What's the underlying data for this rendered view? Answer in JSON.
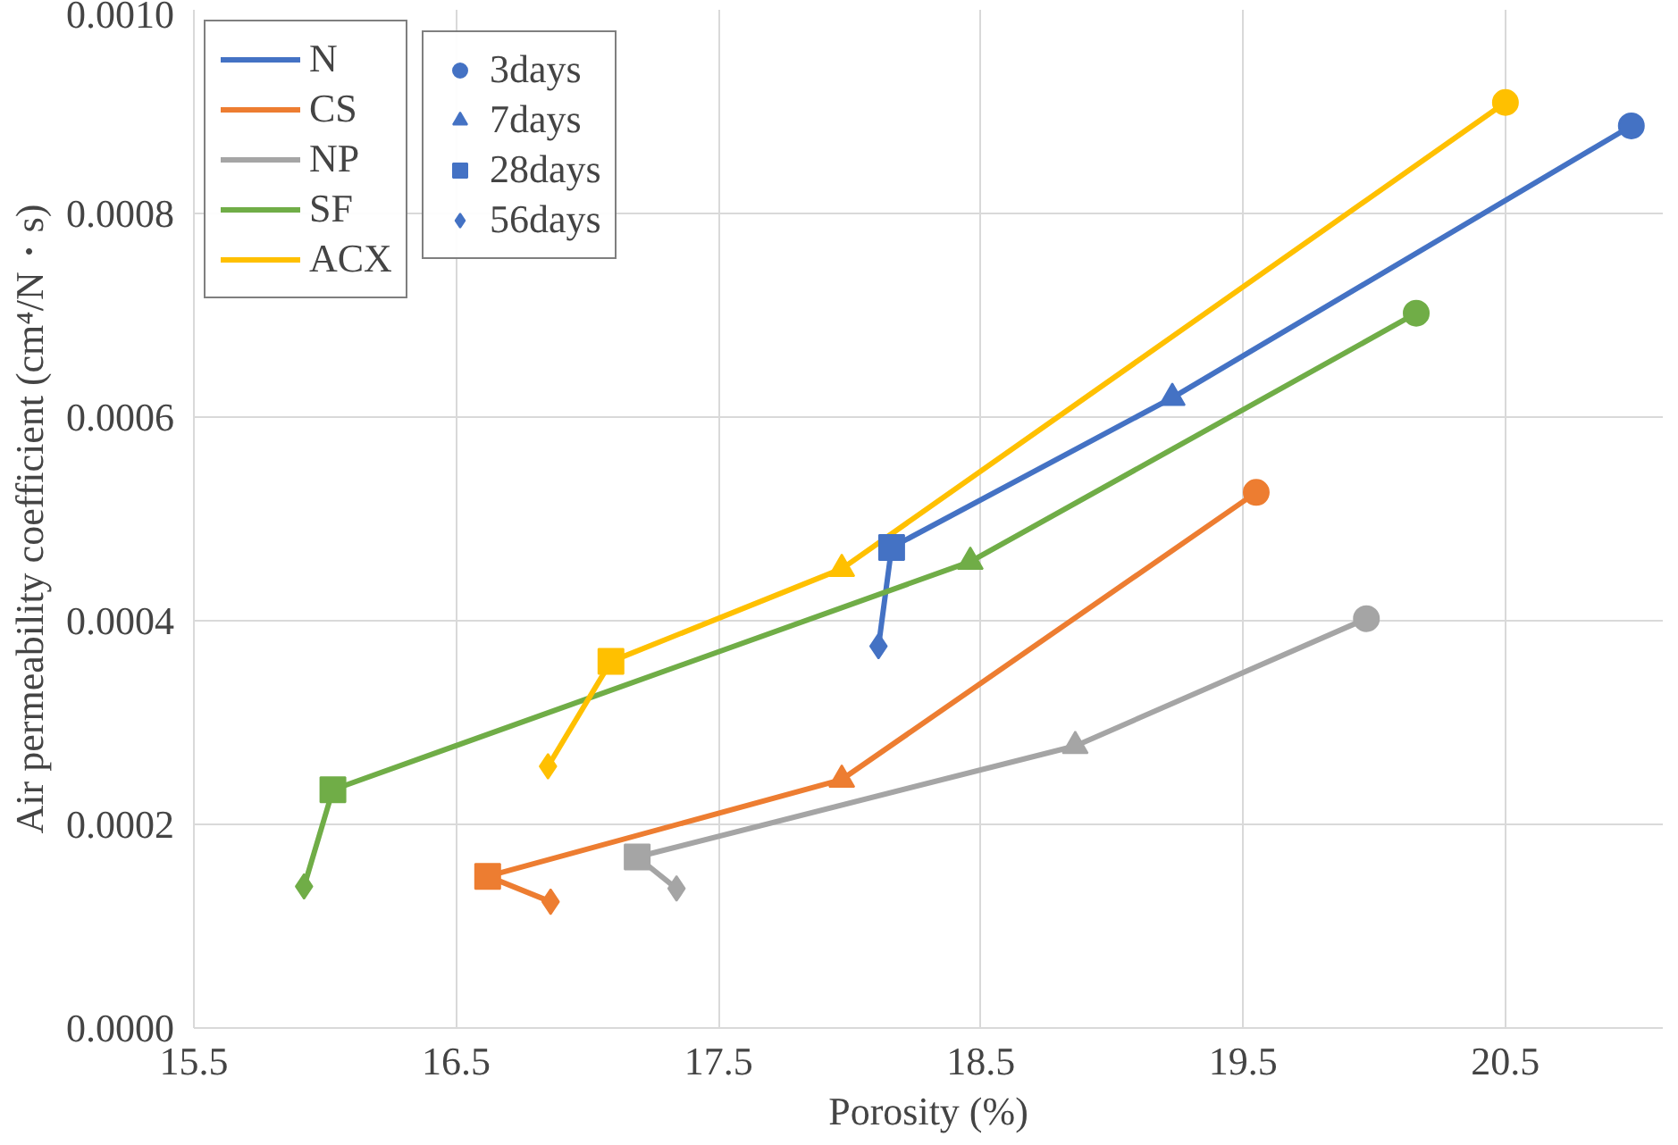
{
  "chart_data": {
    "type": "line",
    "xlabel": "Porosity (%)",
    "ylabel": "Air permeability coefficient (cm⁴/N・s)",
    "xlim": [
      15.5,
      21.1
    ],
    "ylim": [
      0,
      0.001
    ],
    "xticks": [
      15.5,
      16.5,
      17.5,
      18.5,
      19.5,
      20.5
    ],
    "yticks": [
      {
        "value": 0,
        "label": "0.0000"
      },
      {
        "value": 0.0002,
        "label": "0.0002"
      },
      {
        "value": 0.0004,
        "label": "0.0004"
      },
      {
        "value": 0.0006,
        "label": "0.0006"
      },
      {
        "value": 0.0008,
        "label": "0.0008"
      },
      {
        "value": 0.001,
        "label": "0.0010"
      }
    ],
    "grid": true,
    "legend": "top left",
    "marker": "none",
    "series": [
      {
        "name": "N",
        "type": "line",
        "color": "#4472c4",
        "x": [
          20.98,
          19.23,
          18.16,
          18.11
        ],
        "values": [
          0.000886,
          0.000619,
          0.000472,
          0.000375
        ]
      },
      {
        "name": "CS",
        "type": "line",
        "color": "#ed7d31",
        "x": [
          19.55,
          17.97,
          16.62,
          16.86
        ],
        "values": [
          0.000526,
          0.000244,
          0.000149,
          0.000124
        ]
      },
      {
        "name": "NP",
        "type": "line",
        "color": "#a5a5a5",
        "x": [
          19.97,
          18.86,
          17.19,
          17.34
        ],
        "values": [
          0.000402,
          0.000277,
          0.000168,
          0.000137
        ]
      },
      {
        "name": "SF",
        "type": "line",
        "color": "#70ad47",
        "x": [
          20.16,
          18.46,
          16.03,
          15.92
        ],
        "values": [
          0.000702,
          0.000458,
          0.000234,
          0.000139
        ]
      },
      {
        "name": "ACX",
        "type": "line",
        "color": "#ffc000",
        "x": [
          20.5,
          17.97,
          17.09,
          16.85
        ],
        "values": [
          0.000909,
          0.000451,
          0.00036,
          0.000257
        ]
      },
      {
        "name": "3days",
        "type": "scatter",
        "marker": "circle",
        "x": [
          20.98,
          19.55,
          19.97,
          20.16,
          20.5
        ],
        "values": [
          0.000886,
          0.000526,
          0.000402,
          0.000702,
          0.000909
        ],
        "colors": [
          "#4472c4",
          "#ed7d31",
          "#a5a5a5",
          "#70ad47",
          "#ffc000"
        ]
      },
      {
        "name": "7days",
        "type": "scatter",
        "marker": "triangle",
        "x": [
          19.23,
          17.97,
          18.86,
          18.46,
          17.97
        ],
        "values": [
          0.000619,
          0.000244,
          0.000277,
          0.000458,
          0.000451
        ],
        "colors": [
          "#4472c4",
          "#ed7d31",
          "#a5a5a5",
          "#70ad47",
          "#ffc000"
        ]
      },
      {
        "name": "28days",
        "type": "scatter",
        "marker": "square",
        "x": [
          18.16,
          16.62,
          17.19,
          16.03,
          17.09
        ],
        "values": [
          0.000472,
          0.000149,
          0.000168,
          0.000234,
          0.00036
        ],
        "colors": [
          "#4472c4",
          "#ed7d31",
          "#a5a5a5",
          "#70ad47",
          "#ffc000"
        ]
      },
      {
        "name": "56days",
        "type": "scatter",
        "marker": "diamond",
        "x": [
          18.11,
          16.86,
          17.34,
          15.92,
          16.85
        ],
        "values": [
          0.000375,
          0.000124,
          0.000137,
          0.000139,
          0.000257
        ],
        "colors": [
          "#4472c4",
          "#ed7d31",
          "#a5a5a5",
          "#70ad47",
          "#ffc000"
        ]
      }
    ]
  }
}
